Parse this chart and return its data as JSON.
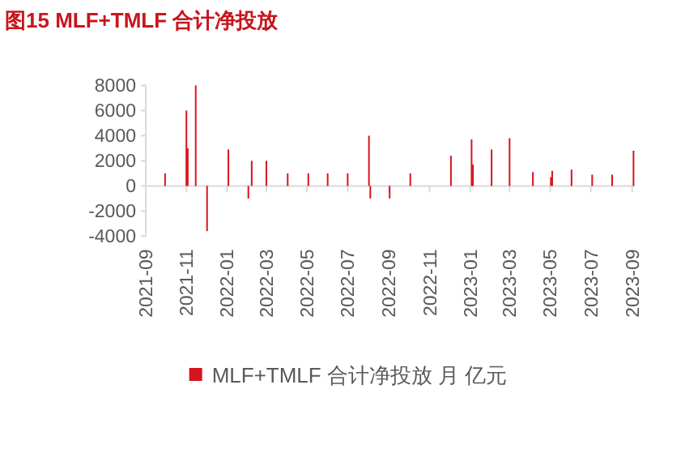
{
  "chart_data": {
    "type": "bar",
    "title": "图15  MLF+TMLF 合计净投放",
    "x": [
      "2021-09-30",
      "2021-11-01",
      "2021-11-03",
      "2021-11-15",
      "2021-12-02",
      "2022-01-03",
      "2022-02-02",
      "2022-02-07",
      "2022-03-01",
      "2022-04-02",
      "2022-05-03",
      "2022-06-01",
      "2022-07-01",
      "2022-08-02",
      "2022-08-04",
      "2022-09-02",
      "2022-10-03",
      "2022-12-03",
      "2023-01-03",
      "2023-01-05",
      "2023-02-02",
      "2023-03-01",
      "2023-04-05",
      "2023-05-02",
      "2023-05-04",
      "2023-06-02",
      "2023-07-03",
      "2023-08-02",
      "2023-09-03"
    ],
    "series": [
      {
        "name": "MLF+TMLF 合计净投放 月 亿元",
        "color": "#d7141e",
        "values": [
          1000,
          6000,
          3000,
          8000,
          -3600,
          2900,
          -1000,
          2000,
          2000,
          1000,
          1000,
          1000,
          1000,
          4000,
          -1000,
          -1000,
          1000,
          2400,
          3700,
          1700,
          2900,
          3800,
          1100,
          700,
          1200,
          1300,
          900,
          900,
          2800
        ]
      }
    ],
    "xlim": [
      "2021-09-01",
      "2023-09-05"
    ],
    "xticks": [
      "2021-09",
      "2021-11",
      "2022-01",
      "2022-03",
      "2022-05",
      "2022-07",
      "2022-09",
      "2022-11",
      "2023-01",
      "2023-03",
      "2023-05",
      "2023-07",
      "2023-09"
    ],
    "ylim": [
      -4000,
      8000
    ],
    "yticks": [
      -4000,
      -2000,
      0,
      2000,
      4000,
      6000,
      8000
    ],
    "legend": "bottom"
  }
}
